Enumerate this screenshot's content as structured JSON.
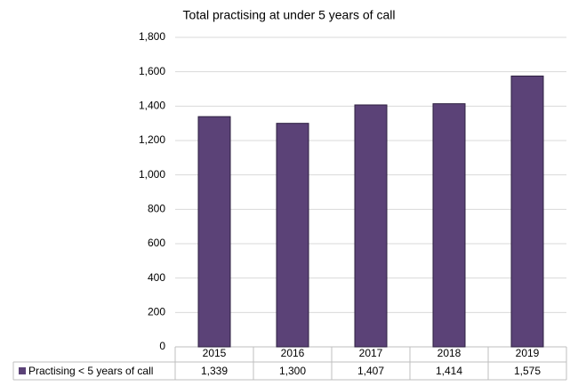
{
  "chart_data": {
    "type": "bar",
    "title": "Total practising at under 5 years of call",
    "categories": [
      "2015",
      "2016",
      "2017",
      "2018",
      "2019"
    ],
    "series": [
      {
        "name": "Practising < 5 years of call",
        "color": "#5b4277",
        "values": [
          1339,
          1300,
          1407,
          1414,
          1575
        ],
        "value_labels": [
          "1,339",
          "1,300",
          "1,407",
          "1,414",
          "1,575"
        ]
      }
    ],
    "ylim": [
      0,
      1800
    ],
    "yticks": [
      0,
      200,
      400,
      600,
      800,
      {
        "value": 1000,
        "label": "1,000"
      },
      {
        "value": 1200,
        "label": "1,200"
      },
      {
        "value": 1400,
        "label": "1,400"
      },
      {
        "value": 1600,
        "label": "1,600"
      },
      {
        "value": 1800,
        "label": "1,800"
      }
    ],
    "grid": true,
    "legend": "data-table"
  }
}
